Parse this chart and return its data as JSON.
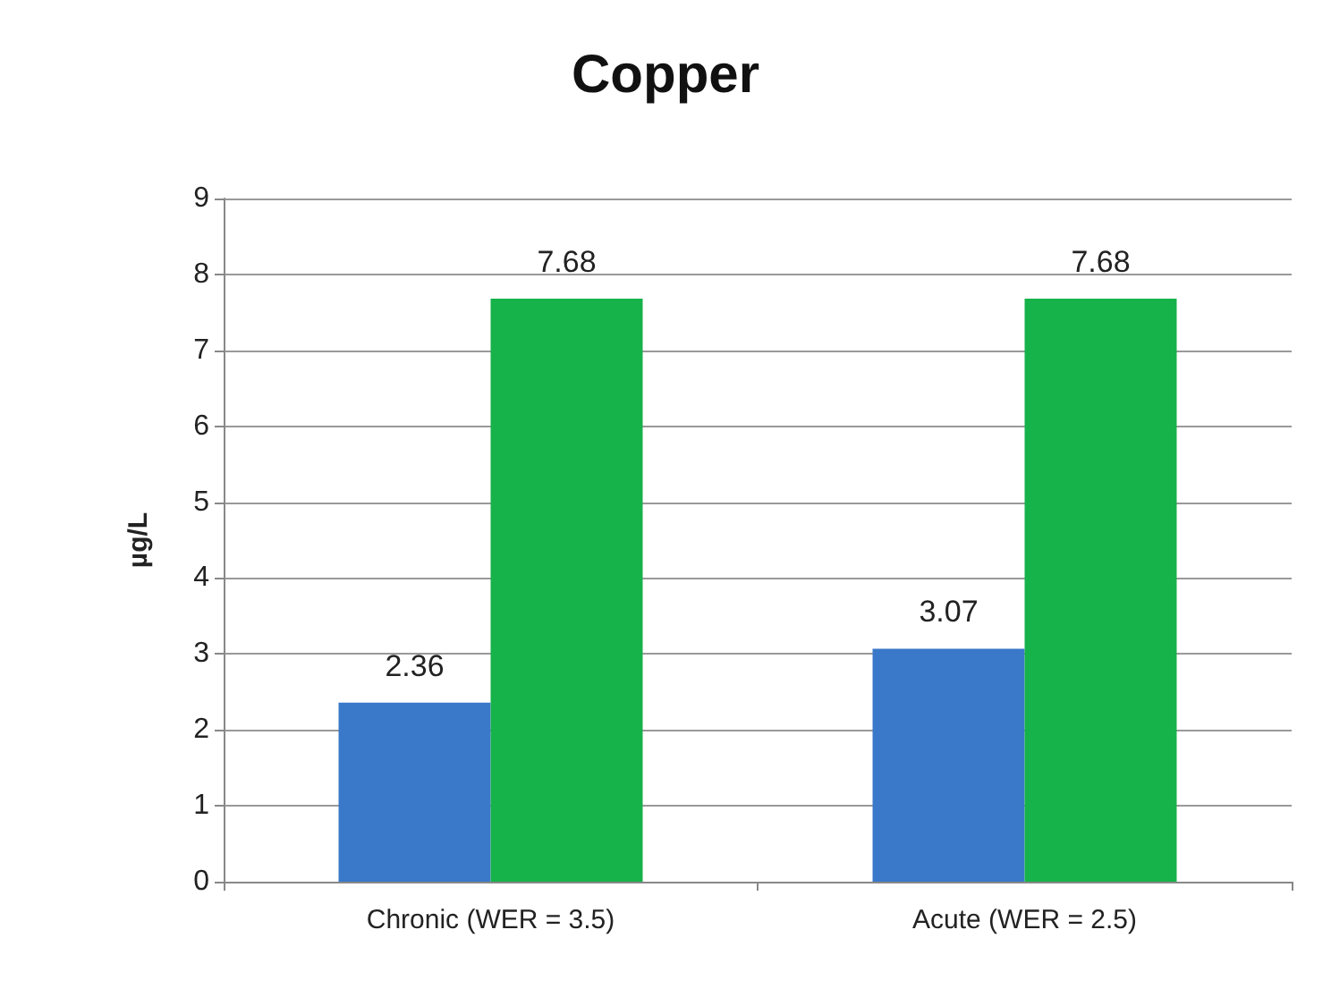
{
  "chart_data": {
    "type": "bar",
    "title": "Copper",
    "ylabel": "µg/L",
    "categories": [
      "Chronic (WER = 3.5)",
      "Acute (WER = 2.5)"
    ],
    "series": [
      {
        "color": "#3a78c9",
        "values": [
          2.36,
          3.07
        ]
      },
      {
        "color": "#16b24a",
        "values": [
          7.68,
          7.68
        ]
      }
    ],
    "ylim": [
      0,
      9
    ],
    "yticks": [
      0,
      1,
      2,
      3,
      4,
      5,
      6,
      7,
      8,
      9
    ],
    "grid": "y",
    "data_labels": true
  }
}
